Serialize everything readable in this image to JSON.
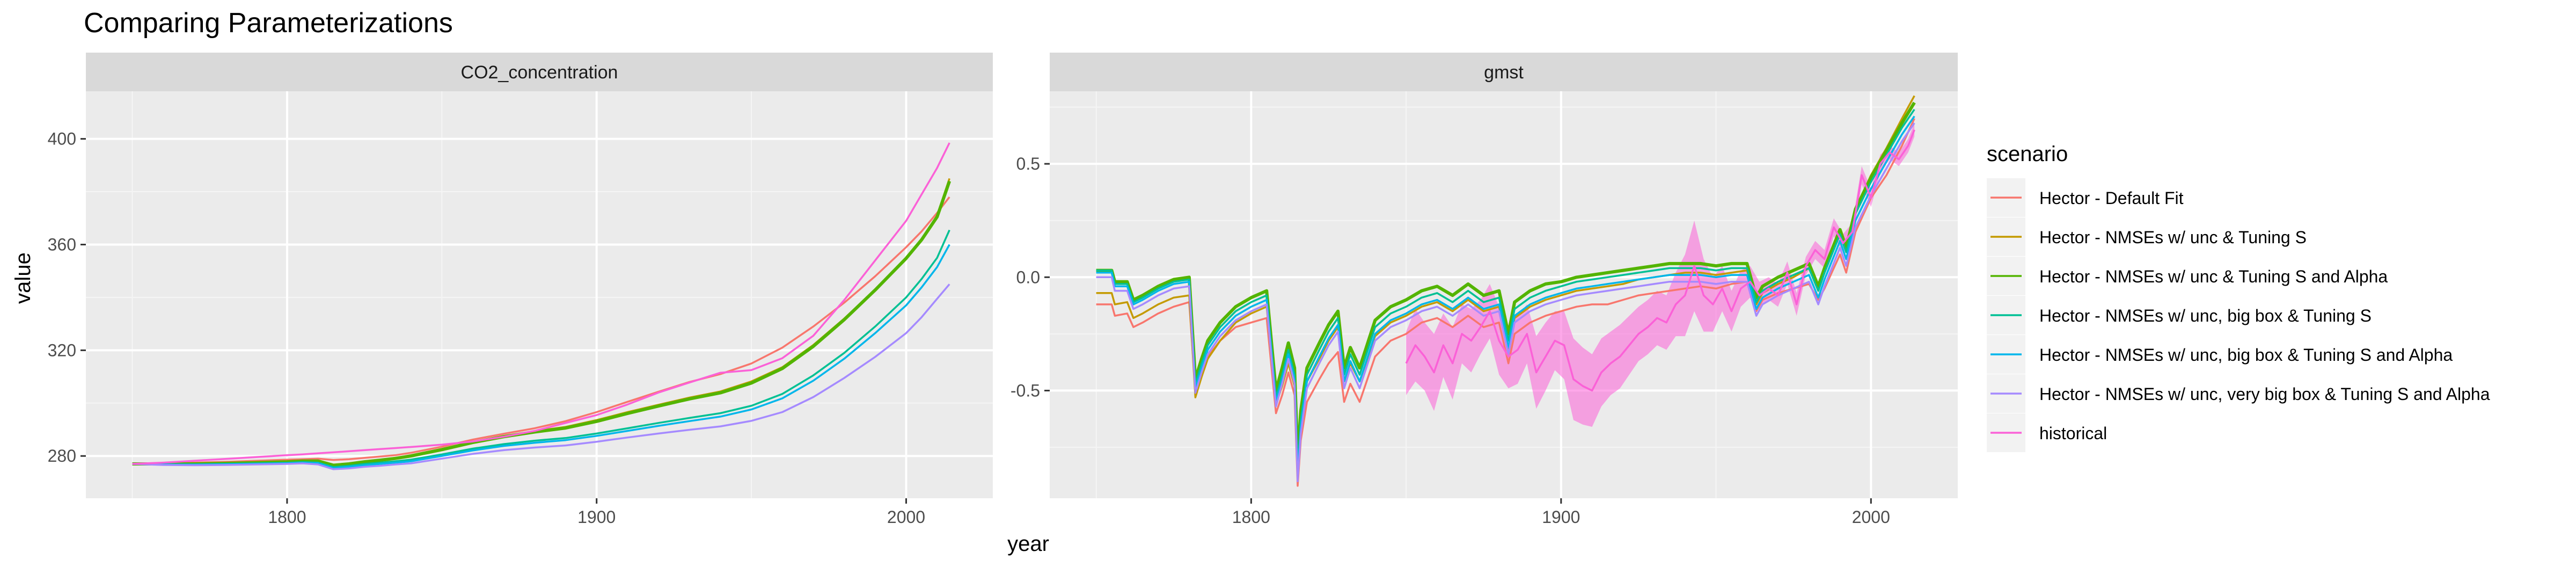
{
  "title": "Comparing Parameterizations",
  "xlabel": "year",
  "ylabel": "value",
  "legend": {
    "title": "scenario",
    "entries": [
      {
        "label": "Hector - Default Fit",
        "color": "#F8766D"
      },
      {
        "label": "Hector - NMSEs w/ unc & Tuning S",
        "color": "#C49A00"
      },
      {
        "label": "Hector - NMSEs w/ unc & Tuning S and Alpha",
        "color": "#53B400"
      },
      {
        "label": "Hector - NMSEs w/ unc, big box & Tuning S",
        "color": "#00C094"
      },
      {
        "label": "Hector - NMSEs w/ unc, big box & Tuning S and Alpha",
        "color": "#00B6EB"
      },
      {
        "label": "Hector - NMSEs w/ unc, very big box & Tuning S and Alpha",
        "color": "#A58AFF"
      },
      {
        "label": "historical",
        "color": "#FB61D7"
      }
    ]
  },
  "chart_data": [
    {
      "type": "line",
      "panel": "CO2_concentration",
      "xlim": [
        1735,
        2028
      ],
      "ylim": [
        264,
        418
      ],
      "xticks": [
        1800,
        1900,
        2000
      ],
      "yticks": [
        280,
        320,
        360,
        400
      ],
      "x": [
        1750,
        1760,
        1770,
        1780,
        1790,
        1800,
        1805,
        1810,
        1815,
        1820,
        1825,
        1830,
        1835,
        1840,
        1850,
        1860,
        1870,
        1880,
        1890,
        1900,
        1910,
        1920,
        1930,
        1940,
        1950,
        1960,
        1970,
        1980,
        1990,
        2000,
        2005,
        2010,
        2014
      ],
      "series": [
        {
          "name": "Hector - Default Fit",
          "values": [
            277.0,
            277.2,
            277.5,
            277.8,
            278.2,
            278.6,
            278.8,
            279.0,
            278.5,
            278.8,
            279.3,
            279.8,
            280.3,
            281.2,
            283.5,
            286.2,
            288.4,
            290.5,
            293.2,
            296.6,
            300.5,
            304.3,
            308.0,
            311.0,
            315.0,
            321.0,
            329.0,
            338.0,
            348.0,
            359.0,
            365.0,
            372.0,
            378.0
          ]
        },
        {
          "name": "Hector - NMSEs w/ unc & Tuning S",
          "values": [
            277.0,
            277.0,
            277.0,
            277.3,
            277.6,
            277.9,
            278.2,
            278.2,
            276.6,
            277.2,
            278.0,
            278.6,
            279.3,
            280.3,
            282.7,
            285.4,
            287.6,
            289.4,
            291.0,
            293.6,
            296.6,
            299.4,
            302.1,
            304.4,
            308.2,
            313.6,
            322.0,
            332.0,
            343.0,
            355.0,
            362.0,
            371.0,
            385.0
          ]
        },
        {
          "name": "Hector - NMSEs w/ unc & Tuning S and Alpha",
          "values": [
            277.0,
            277.0,
            277.0,
            277.2,
            277.5,
            277.8,
            278.1,
            278.1,
            276.5,
            277.0,
            277.8,
            278.4,
            279.1,
            280.0,
            282.4,
            285.1,
            287.3,
            289.1,
            290.6,
            293.1,
            296.1,
            298.9,
            301.6,
            303.9,
            307.6,
            313.1,
            321.5,
            331.6,
            342.8,
            354.8,
            361.8,
            370.5,
            384.0
          ]
        },
        {
          "name": "Hector - NMSEs w/ unc, big box & Tuning S",
          "values": [
            277.0,
            276.8,
            276.8,
            277.0,
            277.2,
            277.4,
            277.7,
            277.5,
            275.8,
            276.3,
            277.0,
            277.5,
            278.0,
            278.6,
            280.6,
            282.8,
            284.5,
            285.8,
            286.8,
            288.5,
            290.5,
            292.5,
            294.4,
            296.2,
            299.0,
            303.5,
            310.5,
            319.0,
            329.0,
            340.0,
            347.0,
            355.0,
            365.5
          ]
        },
        {
          "name": "Hector - NMSEs w/ unc, big box & Tuning S and Alpha",
          "values": [
            277.0,
            276.8,
            276.8,
            276.9,
            277.1,
            277.3,
            277.5,
            277.3,
            275.4,
            275.9,
            276.5,
            277.0,
            277.5,
            278.0,
            280.0,
            282.1,
            283.8,
            285.0,
            286.0,
            287.6,
            289.5,
            291.4,
            293.2,
            294.9,
            297.6,
            301.8,
            308.5,
            316.8,
            326.5,
            337.0,
            343.8,
            351.5,
            360.0
          ]
        },
        {
          "name": "Hector - NMSEs w/ unc, very big box & Tuning S and Alpha",
          "values": [
            277.0,
            276.6,
            276.5,
            276.6,
            276.8,
            277.0,
            277.2,
            276.8,
            275.0,
            275.3,
            275.9,
            276.3,
            276.8,
            277.2,
            279.0,
            280.8,
            282.2,
            283.2,
            284.0,
            285.4,
            287.0,
            288.5,
            289.9,
            291.2,
            293.3,
            296.6,
            302.3,
            309.5,
            317.5,
            326.5,
            332.5,
            339.5,
            345.0
          ]
        },
        {
          "name": "historical",
          "values": [
            277.0,
            277.5,
            278.2,
            278.9,
            279.6,
            280.3,
            280.6,
            281.0,
            281.4,
            281.8,
            282.2,
            282.6,
            283.0,
            283.4,
            284.3,
            285.5,
            287.3,
            289.5,
            292.5,
            295.5,
            299.5,
            304.0,
            307.8,
            311.5,
            312.5,
            317.0,
            325.5,
            339.0,
            354.0,
            369.0,
            379.0,
            389.0,
            398.5
          ]
        }
      ]
    },
    {
      "type": "line",
      "panel": "gmst",
      "xlim": [
        1735,
        2028
      ],
      "ylim": [
        -0.975,
        0.82
      ],
      "xticks": [
        1800,
        1900,
        2000
      ],
      "yticks": [
        -0.5,
        0.0,
        0.5
      ],
      "x": [
        1750,
        1755,
        1756,
        1760,
        1762,
        1765,
        1770,
        1775,
        1780,
        1782,
        1784,
        1786,
        1790,
        1795,
        1800,
        1805,
        1808,
        1810,
        1812,
        1814,
        1815,
        1816,
        1818,
        1822,
        1825,
        1828,
        1830,
        1832,
        1835,
        1840,
        1845,
        1850,
        1855,
        1860,
        1865,
        1870,
        1875,
        1880,
        1883,
        1885,
        1890,
        1895,
        1900,
        1905,
        1910,
        1915,
        1920,
        1925,
        1930,
        1935,
        1940,
        1945,
        1950,
        1955,
        1960,
        1963,
        1965,
        1970,
        1975,
        1980,
        1983,
        1985,
        1990,
        1992,
        1995,
        2000,
        2005,
        2010,
        2014
      ],
      "series": [
        {
          "name": "Hector - Default Fit",
          "values": [
            -0.12,
            -0.12,
            -0.17,
            -0.16,
            -0.22,
            -0.2,
            -0.16,
            -0.13,
            -0.11,
            -0.5,
            -0.42,
            -0.35,
            -0.28,
            -0.22,
            -0.2,
            -0.18,
            -0.6,
            -0.52,
            -0.42,
            -0.52,
            -0.92,
            -0.72,
            -0.55,
            -0.45,
            -0.38,
            -0.33,
            -0.55,
            -0.47,
            -0.55,
            -0.35,
            -0.28,
            -0.25,
            -0.2,
            -0.18,
            -0.22,
            -0.17,
            -0.22,
            -0.2,
            -0.38,
            -0.25,
            -0.2,
            -0.17,
            -0.15,
            -0.13,
            -0.12,
            -0.12,
            -0.1,
            -0.08,
            -0.07,
            -0.06,
            -0.05,
            -0.04,
            -0.05,
            -0.03,
            -0.02,
            -0.15,
            -0.1,
            -0.07,
            -0.05,
            -0.03,
            -0.1,
            -0.05,
            0.1,
            0.02,
            0.2,
            0.35,
            0.45,
            0.58,
            0.7
          ]
        },
        {
          "name": "Hector - NMSEs w/ unc & Tuning S",
          "values": [
            -0.07,
            -0.07,
            -0.12,
            -0.11,
            -0.18,
            -0.16,
            -0.12,
            -0.09,
            -0.08,
            -0.53,
            -0.44,
            -0.36,
            -0.28,
            -0.2,
            -0.16,
            -0.13,
            -0.56,
            -0.48,
            -0.38,
            -0.48,
            -0.85,
            -0.65,
            -0.46,
            -0.36,
            -0.28,
            -0.22,
            -0.46,
            -0.38,
            -0.46,
            -0.26,
            -0.2,
            -0.17,
            -0.13,
            -0.11,
            -0.15,
            -0.1,
            -0.15,
            -0.13,
            -0.32,
            -0.18,
            -0.13,
            -0.1,
            -0.08,
            -0.06,
            -0.05,
            -0.04,
            -0.03,
            -0.01,
            0.0,
            0.01,
            0.02,
            0.02,
            0.01,
            0.02,
            0.03,
            -0.12,
            -0.07,
            -0.03,
            0.0,
            0.04,
            -0.06,
            0.02,
            0.2,
            0.12,
            0.3,
            0.45,
            0.57,
            0.7,
            0.8
          ]
        },
        {
          "name": "Hector - NMSEs w/ unc & Tuning S and Alpha",
          "values": [
            0.03,
            0.03,
            -0.02,
            -0.02,
            -0.1,
            -0.08,
            -0.04,
            -0.01,
            0.0,
            -0.45,
            -0.36,
            -0.28,
            -0.2,
            -0.13,
            -0.09,
            -0.06,
            -0.5,
            -0.4,
            -0.29,
            -0.4,
            -0.8,
            -0.59,
            -0.4,
            -0.29,
            -0.21,
            -0.15,
            -0.4,
            -0.31,
            -0.4,
            -0.19,
            -0.13,
            -0.1,
            -0.06,
            -0.04,
            -0.08,
            -0.03,
            -0.08,
            -0.06,
            -0.25,
            -0.11,
            -0.06,
            -0.03,
            -0.02,
            0.0,
            0.01,
            0.02,
            0.03,
            0.04,
            0.05,
            0.06,
            0.06,
            0.06,
            0.05,
            0.06,
            0.06,
            -0.09,
            -0.04,
            0.0,
            0.03,
            0.06,
            -0.04,
            0.04,
            0.21,
            0.13,
            0.3,
            0.44,
            0.56,
            0.68,
            0.77
          ]
        },
        {
          "name": "Hector - NMSEs w/ unc, big box & Tuning S",
          "values": [
            0.03,
            0.03,
            -0.03,
            -0.03,
            -0.11,
            -0.09,
            -0.05,
            -0.02,
            -0.01,
            -0.47,
            -0.38,
            -0.3,
            -0.22,
            -0.15,
            -0.11,
            -0.08,
            -0.53,
            -0.43,
            -0.32,
            -0.43,
            -0.84,
            -0.63,
            -0.43,
            -0.32,
            -0.24,
            -0.18,
            -0.43,
            -0.34,
            -0.43,
            -0.22,
            -0.16,
            -0.13,
            -0.09,
            -0.07,
            -0.11,
            -0.06,
            -0.11,
            -0.09,
            -0.28,
            -0.14,
            -0.09,
            -0.06,
            -0.04,
            -0.02,
            -0.01,
            0.0,
            0.01,
            0.02,
            0.03,
            0.04,
            0.04,
            0.04,
            0.03,
            0.04,
            0.04,
            -0.11,
            -0.06,
            -0.02,
            0.01,
            0.04,
            -0.06,
            0.02,
            0.19,
            0.11,
            0.28,
            0.42,
            0.54,
            0.66,
            0.74
          ]
        },
        {
          "name": "Hector - NMSEs w/ unc, big box & Tuning S and Alpha",
          "values": [
            0.02,
            0.02,
            -0.04,
            -0.04,
            -0.12,
            -0.1,
            -0.06,
            -0.03,
            -0.02,
            -0.49,
            -0.4,
            -0.32,
            -0.24,
            -0.17,
            -0.13,
            -0.1,
            -0.55,
            -0.45,
            -0.34,
            -0.45,
            -0.87,
            -0.66,
            -0.46,
            -0.35,
            -0.27,
            -0.21,
            -0.46,
            -0.37,
            -0.46,
            -0.25,
            -0.19,
            -0.16,
            -0.12,
            -0.1,
            -0.14,
            -0.09,
            -0.14,
            -0.12,
            -0.31,
            -0.17,
            -0.12,
            -0.09,
            -0.07,
            -0.05,
            -0.04,
            -0.03,
            -0.02,
            -0.01,
            0.0,
            0.01,
            0.01,
            0.01,
            0.0,
            0.01,
            0.01,
            -0.14,
            -0.09,
            -0.05,
            -0.02,
            0.01,
            -0.09,
            -0.01,
            0.16,
            0.08,
            0.25,
            0.39,
            0.51,
            0.63,
            0.71
          ]
        },
        {
          "name": "Hector - NMSEs w/ unc, very big box & Tuning S and Alpha",
          "values": [
            0.0,
            0.0,
            -0.06,
            -0.06,
            -0.14,
            -0.12,
            -0.08,
            -0.05,
            -0.04,
            -0.51,
            -0.42,
            -0.34,
            -0.26,
            -0.19,
            -0.15,
            -0.12,
            -0.57,
            -0.47,
            -0.36,
            -0.47,
            -0.9,
            -0.69,
            -0.49,
            -0.38,
            -0.3,
            -0.24,
            -0.49,
            -0.4,
            -0.49,
            -0.28,
            -0.22,
            -0.19,
            -0.15,
            -0.13,
            -0.17,
            -0.12,
            -0.17,
            -0.15,
            -0.34,
            -0.2,
            -0.15,
            -0.12,
            -0.1,
            -0.08,
            -0.07,
            -0.06,
            -0.05,
            -0.04,
            -0.03,
            -0.02,
            -0.02,
            -0.02,
            -0.03,
            -0.02,
            -0.02,
            -0.17,
            -0.12,
            -0.08,
            -0.05,
            -0.02,
            -0.12,
            -0.04,
            0.13,
            0.05,
            0.22,
            0.36,
            0.48,
            0.6,
            0.68
          ]
        }
      ],
      "historical": {
        "name": "historical",
        "x": [
          1850,
          1853,
          1856,
          1859,
          1862,
          1865,
          1868,
          1871,
          1874,
          1877,
          1880,
          1883,
          1886,
          1889,
          1892,
          1895,
          1898,
          1901,
          1904,
          1907,
          1910,
          1913,
          1916,
          1919,
          1922,
          1925,
          1928,
          1931,
          1934,
          1937,
          1940,
          1943,
          1946,
          1949,
          1952,
          1955,
          1958,
          1961,
          1964,
          1967,
          1970,
          1973,
          1976,
          1979,
          1982,
          1985,
          1988,
          1991,
          1994,
          1997,
          2000,
          2003,
          2006,
          2009,
          2012,
          2014
        ],
        "values": [
          -0.38,
          -0.3,
          -0.35,
          -0.42,
          -0.3,
          -0.38,
          -0.25,
          -0.28,
          -0.22,
          -0.15,
          -0.28,
          -0.35,
          -0.32,
          -0.25,
          -0.42,
          -0.35,
          -0.28,
          -0.3,
          -0.45,
          -0.48,
          -0.5,
          -0.42,
          -0.38,
          -0.35,
          -0.3,
          -0.25,
          -0.22,
          -0.18,
          -0.2,
          -0.12,
          -0.08,
          0.05,
          -0.08,
          -0.12,
          -0.05,
          -0.15,
          -0.05,
          -0.02,
          -0.08,
          -0.05,
          -0.08,
          0.02,
          -0.12,
          0.05,
          0.12,
          0.08,
          0.22,
          0.15,
          0.2,
          0.45,
          0.35,
          0.5,
          0.55,
          0.52,
          0.58,
          0.65
        ],
        "band_halfwidth": [
          0.14,
          0.16,
          0.15,
          0.17,
          0.14,
          0.16,
          0.13,
          0.14,
          0.12,
          0.12,
          0.15,
          0.14,
          0.15,
          0.13,
          0.16,
          0.15,
          0.13,
          0.15,
          0.18,
          0.17,
          0.16,
          0.15,
          0.14,
          0.14,
          0.13,
          0.12,
          0.12,
          0.12,
          0.12,
          0.14,
          0.18,
          0.2,
          0.16,
          0.12,
          0.1,
          0.09,
          0.08,
          0.07,
          0.06,
          0.05,
          0.05,
          0.05,
          0.05,
          0.04,
          0.04,
          0.04,
          0.04,
          0.04,
          0.04,
          0.04,
          0.04,
          0.04,
          0.03,
          0.03,
          0.03,
          0.03
        ]
      }
    }
  ]
}
